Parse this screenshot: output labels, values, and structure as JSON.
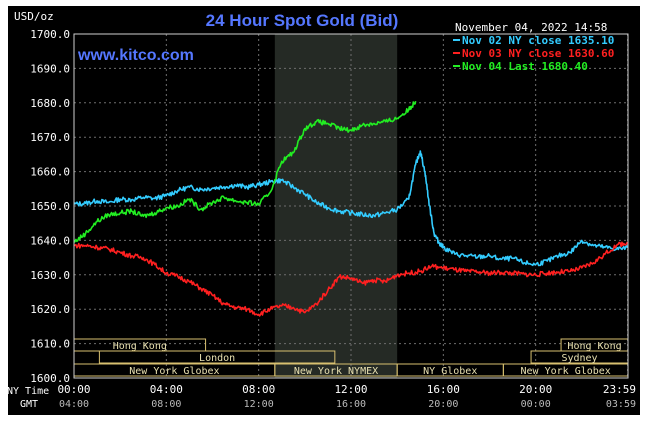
{
  "chart_data": {
    "type": "line",
    "title": "24 Hour Spot Gold (Bid)",
    "watermark": "www.kitco.com",
    "timestamp": "November 04, 2022 14:58",
    "ylabel": "USD/oz",
    "ylim": [
      1600,
      1700
    ],
    "yticks": [
      "1700.0",
      "1690.0",
      "1680.0",
      "1670.0",
      "1660.0",
      "1650.0",
      "1640.0",
      "1630.0",
      "1620.0",
      "1610.0",
      "1600.0"
    ],
    "xlim": [
      0,
      24
    ],
    "time_rows": {
      "ny_label": "NY Time",
      "gmt_label": "GMT",
      "ny": [
        "00:00",
        "04:00",
        "08:00",
        "12:00",
        "16:00",
        "20:00",
        "23:59"
      ],
      "gmt": [
        "04:00",
        "08:00",
        "12:00",
        "16:00",
        "20:00",
        "00:00",
        "03:59"
      ],
      "hours": [
        0,
        4,
        8,
        12,
        16,
        20,
        23.983
      ]
    },
    "shaded_region": {
      "start": 8.7,
      "end": 14
    },
    "sessions": [
      {
        "label": "Hong Kong",
        "start": 0,
        "end": 5.7,
        "row": 0
      },
      {
        "label": "Hong Kong",
        "start": 21.1,
        "end": 24,
        "row": 0
      },
      {
        "label": "London",
        "start": 1.1,
        "end": 11.3,
        "row": 1
      },
      {
        "label": "Sydney",
        "start": 19.8,
        "end": 24,
        "row": 1
      },
      {
        "label": "New York Globex",
        "start": 0,
        "end": 8.7,
        "row": 2
      },
      {
        "label": "New York NYMEX",
        "start": 8.7,
        "end": 14,
        "row": 2
      },
      {
        "label": "NY Globex",
        "start": 14,
        "end": 18.6,
        "row": 2
      },
      {
        "label": "New York Globex",
        "start": 18.6,
        "end": 24,
        "row": 2
      }
    ],
    "legend_position": "top-right",
    "series": [
      {
        "name": "Nov 02 NY close 1635.10",
        "color": "#33ccff",
        "x": [
          0,
          0.5,
          1,
          1.5,
          2,
          2.5,
          3,
          3.5,
          4,
          4.5,
          5,
          5.5,
          6,
          6.5,
          7,
          7.5,
          8,
          8.5,
          9,
          9.5,
          10,
          10.5,
          11,
          11.5,
          12,
          12.5,
          13,
          13.5,
          14,
          14.5,
          14.8,
          15,
          15.2,
          15.4,
          15.6,
          15.8,
          16,
          16.5,
          17,
          17.5,
          18,
          18.5,
          19,
          19.5,
          20,
          20.5,
          21,
          21.5,
          22,
          22.5,
          23,
          23.5,
          23.98
        ],
        "y": [
          1650.5,
          1650.8,
          1651.5,
          1651.0,
          1652.0,
          1651.8,
          1652.5,
          1652.2,
          1653.0,
          1654.5,
          1655.5,
          1654.8,
          1655.2,
          1655.6,
          1656.0,
          1655.5,
          1656.2,
          1657.0,
          1657.5,
          1655.5,
          1653.5,
          1651.0,
          1649.5,
          1648.5,
          1648.0,
          1647.5,
          1647.2,
          1648.0,
          1649.0,
          1652.0,
          1662.0,
          1666.0,
          1660.0,
          1650.0,
          1642.0,
          1639.5,
          1638.0,
          1636.0,
          1635.5,
          1635.2,
          1635.5,
          1634.5,
          1634.8,
          1633.5,
          1633.0,
          1634.0,
          1635.5,
          1636.5,
          1640.0,
          1638.5,
          1638.0,
          1637.5,
          1637.8
        ]
      },
      {
        "name": "Nov 03 NY close 1630.60",
        "color": "#ff2020",
        "x": [
          0,
          0.5,
          1,
          1.5,
          2,
          2.5,
          3,
          3.5,
          4,
          4.5,
          5,
          5.5,
          6,
          6.5,
          7,
          7.5,
          8,
          8.5,
          9,
          9.5,
          10,
          10.5,
          11,
          11.5,
          12,
          12.5,
          13,
          13.5,
          14,
          14.5,
          15,
          15.5,
          16,
          16.5,
          17,
          17.5,
          18,
          18.5,
          19,
          19.5,
          20,
          20.5,
          21,
          21.5,
          22,
          22.5,
          23,
          23.5,
          23.98
        ],
        "y": [
          1638.5,
          1638.5,
          1638.0,
          1637.5,
          1636.5,
          1635.5,
          1635.0,
          1633.0,
          1630.5,
          1629.5,
          1628.0,
          1626.0,
          1624.0,
          1621.5,
          1620.5,
          1620.0,
          1618.5,
          1620.0,
          1621.0,
          1620.5,
          1619.0,
          1621.5,
          1625.5,
          1629.5,
          1629.0,
          1627.5,
          1628.5,
          1628.0,
          1630.0,
          1630.5,
          1631.0,
          1632.5,
          1632.0,
          1631.5,
          1631.0,
          1630.8,
          1630.5,
          1630.7,
          1630.5,
          1630.2,
          1630.0,
          1630.5,
          1630.8,
          1631.0,
          1632.0,
          1633.5,
          1636.0,
          1638.5,
          1639.5
        ]
      },
      {
        "name": "Nov 04 Last 1680.40",
        "color": "#22ee22",
        "x": [
          0,
          0.5,
          1,
          1.5,
          2,
          2.5,
          3,
          3.5,
          4,
          4.5,
          5,
          5.5,
          6,
          6.5,
          7,
          7.5,
          8,
          8.5,
          9,
          9.5,
          10,
          10.5,
          11,
          11.5,
          12,
          12.5,
          13,
          13.5,
          14,
          14.5,
          14.8
        ],
        "y": [
          1639.5,
          1642.0,
          1645.5,
          1647.5,
          1648.0,
          1648.5,
          1647.0,
          1648.0,
          1649.5,
          1650.0,
          1652.0,
          1649.0,
          1651.0,
          1652.5,
          1651.5,
          1651.0,
          1650.5,
          1654.0,
          1663.0,
          1665.5,
          1672.5,
          1674.5,
          1674.0,
          1672.5,
          1672.0,
          1673.5,
          1674.0,
          1674.5,
          1675.5,
          1678.0,
          1680.5
        ]
      }
    ]
  }
}
